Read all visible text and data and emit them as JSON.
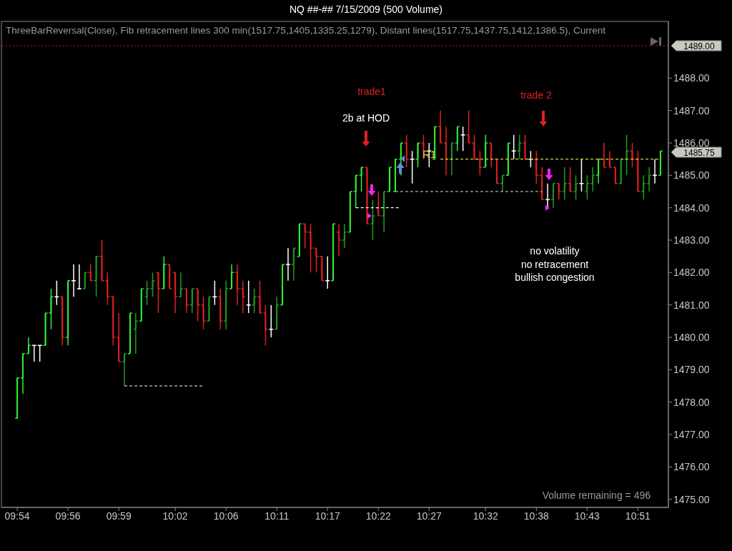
{
  "chart_data": {
    "type": "candlestick",
    "title": "NQ ##-##  7/15/2009 (500 Volume)",
    "categories": [
      "09:54",
      null,
      null,
      null,
      null,
      null,
      null,
      null,
      null,
      "09:56",
      null,
      null,
      null,
      null,
      null,
      null,
      null,
      null,
      "09:59",
      null,
      null,
      null,
      null,
      null,
      null,
      null,
      null,
      null,
      "10:02",
      null,
      null,
      null,
      null,
      null,
      null,
      null,
      null,
      "10:06",
      null,
      null,
      null,
      null,
      null,
      null,
      null,
      null,
      "10:11",
      null,
      null,
      null,
      null,
      null,
      null,
      null,
      null,
      "10:17",
      null,
      null,
      null,
      null,
      null,
      null,
      null,
      null,
      "10:22",
      null,
      null,
      null,
      null,
      null,
      null,
      null,
      null,
      "10:27",
      null,
      null,
      null,
      null,
      null,
      null,
      null,
      null,
      null,
      "10:32",
      null,
      null,
      null,
      null,
      null,
      null,
      null,
      null,
      "10:38",
      null,
      null,
      null,
      null,
      null,
      null,
      null,
      null,
      "10:43",
      null,
      null,
      null,
      null,
      null,
      null,
      null,
      null,
      "10:51",
      null,
      null,
      null,
      null
    ],
    "ohlc": [
      [
        1477.5,
        1478.75,
        1477.5,
        1478.75
      ],
      [
        1478.75,
        1479.5,
        1478.25,
        1479.5
      ],
      [
        1479.5,
        1480,
        1479.5,
        1479.75
      ],
      [
        1479.75,
        1479.75,
        1479.25,
        1479.75
      ],
      [
        1479.75,
        1479.75,
        1479.25,
        1479.75
      ],
      [
        1479.75,
        1480.75,
        1479.75,
        1480.75
      ],
      [
        1480.75,
        1481.5,
        1480.25,
        1481.25
      ],
      [
        1481.25,
        1481.75,
        1481,
        1481.25
      ],
      [
        1481.25,
        1481.25,
        1479.75,
        1480
      ],
      [
        1480,
        1481.75,
        1479.75,
        1481.75
      ],
      [
        1481.75,
        1482.25,
        1481.25,
        1481.75
      ],
      [
        1481.5,
        1482.25,
        1481.5,
        1481.5
      ],
      [
        1481.5,
        1482,
        1481.5,
        1482
      ],
      [
        1482,
        1482.25,
        1481.75,
        1481.75
      ],
      [
        1481.75,
        1482.5,
        1481.25,
        1482.5
      ],
      [
        1482.5,
        1483,
        1481.75,
        1481.75
      ],
      [
        1481.75,
        1482,
        1481,
        1481.25
      ],
      [
        1481.25,
        1481.25,
        1479.75,
        1480
      ],
      [
        1480,
        1480.75,
        1479.25,
        1479.25
      ],
      [
        1479.25,
        1479.5,
        1478.5,
        1479.5
      ],
      [
        1479.5,
        1480.75,
        1479.5,
        1480.75
      ],
      [
        1480.25,
        1480.75,
        1479.5,
        1480.5
      ],
      [
        1480.5,
        1481.5,
        1480.5,
        1481.5
      ],
      [
        1481.25,
        1481.75,
        1481,
        1481.5
      ],
      [
        1481.5,
        1482,
        1481.25,
        1481.75
      ],
      [
        1482,
        1482,
        1480.75,
        1481.5
      ],
      [
        1481.5,
        1482.5,
        1481.5,
        1482.25
      ],
      [
        1482.25,
        1482.25,
        1481.5,
        1481.5
      ],
      [
        1482,
        1482,
        1480.75,
        1481.25
      ],
      [
        1481.25,
        1482,
        1481.25,
        1481.5
      ],
      [
        1481.5,
        1481.5,
        1480.75,
        1481
      ],
      [
        1481,
        1481.5,
        1480.75,
        1481.5
      ],
      [
        1481.5,
        1481.5,
        1480.5,
        1481
      ],
      [
        1481,
        1481.25,
        1480.25,
        1480.5
      ],
      [
        1480.5,
        1481.25,
        1480.5,
        1481.25
      ],
      [
        1481.25,
        1481.75,
        1481,
        1481.25
      ],
      [
        1481.25,
        1481.5,
        1480.25,
        1480.5
      ],
      [
        1480.5,
        1481.75,
        1480.25,
        1481.5
      ],
      [
        1481.5,
        1482.25,
        1481.5,
        1482
      ],
      [
        1482,
        1482.25,
        1481,
        1481.5
      ],
      [
        1481.5,
        1481.75,
        1480.75,
        1481.25
      ],
      [
        1481,
        1481.75,
        1480.75,
        1481
      ],
      [
        1481,
        1481.5,
        1480.75,
        1481.25
      ],
      [
        1481.25,
        1481.75,
        1480.75,
        1480.75
      ],
      [
        1480.75,
        1481,
        1479.75,
        1480.25
      ],
      [
        1480.25,
        1481,
        1480,
        1480.25
      ],
      [
        1480.25,
        1481.25,
        1480.25,
        1481
      ],
      [
        1481,
        1482.25,
        1481,
        1482.25
      ],
      [
        1482.25,
        1482.75,
        1481.75,
        1482.25
      ],
      [
        1482.25,
        1482.75,
        1481.75,
        1482.75
      ],
      [
        1482.5,
        1483.5,
        1482.5,
        1483.5
      ],
      [
        1483.5,
        1483.5,
        1482.75,
        1483.25
      ],
      [
        1483.25,
        1483.5,
        1482,
        1482.75
      ],
      [
        1482.75,
        1482.75,
        1482,
        1482.5
      ],
      [
        1482.5,
        1482.5,
        1481.75,
        1481.75
      ],
      [
        1481.75,
        1482.5,
        1481.5,
        1481.75
      ],
      [
        1481.75,
        1483.5,
        1481.75,
        1483.5
      ],
      [
        1483.25,
        1483.5,
        1482.5,
        1483
      ],
      [
        1483,
        1483.5,
        1482.75,
        1483.25
      ],
      [
        1483.25,
        1484.5,
        1483.25,
        1484.5
      ],
      [
        1484.5,
        1485,
        1484,
        1485
      ],
      [
        1485,
        1485.25,
        1484.5,
        1485.25
      ],
      [
        1485.25,
        1485.25,
        1483.5,
        1483.5
      ],
      [
        1483.5,
        1484.25,
        1483,
        1483.75
      ],
      [
        1484,
        1484.5,
        1483.75,
        1483.75
      ],
      [
        1483.75,
        1484.5,
        1483.25,
        1484.5
      ],
      [
        1484.5,
        1485.25,
        1484.5,
        1485.25
      ],
      [
        1484.5,
        1485.5,
        1484.5,
        1485.5
      ],
      [
        1485.5,
        1486,
        1485,
        1486
      ],
      [
        1486,
        1486.25,
        1485.25,
        1485.5
      ],
      [
        1485.5,
        1485.75,
        1484.75,
        1485.5
      ],
      [
        1485.5,
        1486,
        1485.25,
        1486
      ],
      [
        1486,
        1486.25,
        1485.5,
        1485.75
      ],
      [
        1485.75,
        1486,
        1485.25,
        1485.75
      ],
      [
        1485.5,
        1486.5,
        1485.5,
        1486.5
      ],
      [
        1486.5,
        1487,
        1486,
        1486
      ],
      [
        1486,
        1486.5,
        1485,
        1485.5
      ],
      [
        1485.5,
        1486,
        1485,
        1486
      ],
      [
        1486,
        1486.5,
        1485.75,
        1486.5
      ],
      [
        1486.25,
        1486.5,
        1485.75,
        1486.25
      ],
      [
        1486.25,
        1487,
        1486,
        1486
      ],
      [
        1486,
        1486.25,
        1485.5,
        1485.5
      ],
      [
        1485.5,
        1485.75,
        1485,
        1485.25
      ],
      [
        1485.25,
        1486.25,
        1485.25,
        1486
      ],
      [
        1486,
        1486,
        1485.25,
        1485.5
      ],
      [
        1485.5,
        1485.5,
        1484.75,
        1484.75
      ],
      [
        1484.75,
        1485,
        1484.5,
        1485
      ],
      [
        1485,
        1486,
        1485,
        1486
      ],
      [
        1485.75,
        1486.25,
        1485.5,
        1485.75
      ],
      [
        1485.75,
        1486.25,
        1485.5,
        1486
      ],
      [
        1486,
        1486.25,
        1485.5,
        1485.5
      ],
      [
        1485.5,
        1485.75,
        1485.25,
        1485.5
      ],
      [
        1485.5,
        1485.75,
        1484.75,
        1485
      ],
      [
        1485,
        1485.25,
        1484.25,
        1484.25
      ],
      [
        1484.25,
        1484.75,
        1484,
        1484.25
      ],
      [
        1484.25,
        1484.75,
        1484,
        1484.75
      ],
      [
        1484.75,
        1484.75,
        1484.25,
        1484.5
      ],
      [
        1484.5,
        1485.25,
        1484.25,
        1484.75
      ],
      [
        1484.75,
        1485.25,
        1484.5,
        1484.5
      ],
      [
        1484.5,
        1485,
        1484.25,
        1484.75
      ],
      [
        1484.75,
        1485.5,
        1484.5,
        1484.75
      ],
      [
        1484.5,
        1485,
        1484.25,
        1484.75
      ],
      [
        1484.75,
        1485.25,
        1484.5,
        1485
      ],
      [
        1485,
        1485.5,
        1484.75,
        1485.5
      ],
      [
        1485.5,
        1486,
        1485.25,
        1485.25
      ],
      [
        1485.5,
        1485.75,
        1485.25,
        1485.25
      ],
      [
        1485.25,
        1485.25,
        1484.75,
        1484.75
      ],
      [
        1484.75,
        1485.5,
        1484.75,
        1485.5
      ],
      [
        1485.5,
        1486.25,
        1485,
        1485.75
      ],
      [
        1485.75,
        1486,
        1485.25,
        1485.5
      ],
      [
        1485.5,
        1485.75,
        1484.5,
        1484.5
      ],
      [
        1484.5,
        1485,
        1484.25,
        1484.75
      ],
      [
        1484.75,
        1485.25,
        1484.5,
        1485
      ],
      [
        1485,
        1485.5,
        1484.75,
        1485
      ],
      [
        1485,
        1485.75,
        1485,
        1485.75
      ]
    ],
    "colors": [
      "#33ee33",
      "#33ee33",
      "#33ee33",
      "#ffffff",
      "#ffffff",
      "#33ee33",
      "#33ee33",
      "#ffffff",
      "#e02020",
      "#33ee33",
      "#ffffff",
      "#ffffff",
      "#1f9a1f",
      "#e02020",
      "#1f9a1f",
      "#e02020",
      "#e02020",
      "#e02020",
      "#e02020",
      "#1f9a1f",
      "#33ee33",
      "#1f9a1f",
      "#33ee33",
      "#1f9a1f",
      "#1f9a1f",
      "#e02020",
      "#33ee33",
      "#e02020",
      "#e02020",
      "#1f9a1f",
      "#e02020",
      "#1f9a1f",
      "#e02020",
      "#e02020",
      "#1f9a1f",
      "#ffffff",
      "#e02020",
      "#1f9a1f",
      "#33ee33",
      "#e02020",
      "#e02020",
      "#ffffff",
      "#1f9a1f",
      "#e02020",
      "#e02020",
      "#ffffff",
      "#1f9a1f",
      "#33ee33",
      "#ffffff",
      "#1f9a1f",
      "#33ee33",
      "#e02020",
      "#e02020",
      "#e02020",
      "#e02020",
      "#ffffff",
      "#33ee33",
      "#e02020",
      "#1f9a1f",
      "#33ee33",
      "#33ee33",
      "#33ee33",
      "#e02020",
      "#1f9a1f",
      "#e02020",
      "#1f9a1f",
      "#33ee33",
      "#33ee33",
      "#33ee33",
      "#e02020",
      "#ffffff",
      "#33ee33",
      "#e02020",
      "#ffffff",
      "#33ee33",
      "#e02020",
      "#e02020",
      "#1f9a1f",
      "#33ee33",
      "#ffffff",
      "#e02020",
      "#e02020",
      "#e02020",
      "#33ee33",
      "#e02020",
      "#e02020",
      "#1f9a1f",
      "#33ee33",
      "#ffffff",
      "#1f9a1f",
      "#e02020",
      "#ffffff",
      "#e02020",
      "#e02020",
      "#ffffff",
      "#1f9a1f",
      "#e02020",
      "#1f9a1f",
      "#e02020",
      "#1f9a1f",
      "#ffffff",
      "#1f9a1f",
      "#1f9a1f",
      "#33ee33",
      "#e02020",
      "#e02020",
      "#e02020",
      "#1f9a1f",
      "#1f9a1f",
      "#e02020",
      "#e02020",
      "#1f9a1f",
      "#1f9a1f",
      "#ffffff",
      "#33ee33"
    ],
    "series": [
      {
        "type": "line",
        "color": "#ffffff",
        "line_style": "dashed",
        "values": [
          null,
          null,
          null,
          null,
          null,
          null,
          null,
          null,
          null,
          null,
          null,
          null,
          null,
          null,
          null,
          null,
          null,
          null,
          null,
          1478.5,
          1478.5,
          1478.5,
          1478.5,
          1478.5,
          1478.5,
          1478.5,
          1478.5,
          1478.5,
          1478.5,
          1478.5,
          1478.5,
          1478.5,
          1478.5,
          1478.5,
          null,
          null,
          null,
          null,
          null,
          null,
          null,
          null,
          null,
          null,
          null,
          null,
          null,
          null,
          null,
          null,
          null,
          null,
          null,
          null,
          null,
          null,
          null,
          null,
          null,
          null,
          null,
          null,
          null,
          null,
          null,
          null,
          null,
          null,
          null,
          null,
          null,
          null,
          null,
          null,
          null,
          null,
          null,
          null,
          null,
          null,
          null,
          null,
          null,
          null,
          null,
          null,
          null,
          null,
          null,
          null,
          null,
          null,
          null,
          null,
          null,
          null,
          null,
          null,
          null,
          null,
          null,
          null,
          null,
          null,
          null,
          null,
          null,
          null,
          null,
          null,
          null,
          null,
          null,
          null,
          null
        ]
      },
      {
        "type": "line",
        "color": "#ffffff",
        "line_style": "dashed",
        "values": [
          null,
          null,
          null,
          null,
          null,
          null,
          null,
          null,
          null,
          null,
          null,
          null,
          null,
          null,
          null,
          null,
          null,
          null,
          null,
          null,
          null,
          null,
          null,
          null,
          null,
          null,
          null,
          null,
          null,
          null,
          null,
          null,
          null,
          null,
          null,
          null,
          null,
          null,
          null,
          null,
          null,
          null,
          null,
          null,
          null,
          null,
          null,
          null,
          null,
          null,
          null,
          null,
          null,
          null,
          null,
          null,
          null,
          null,
          null,
          null,
          1484,
          1484,
          1484,
          1484,
          1484,
          1484,
          1484,
          1484,
          1484,
          null,
          null,
          null,
          null,
          null,
          null,
          null,
          null,
          null,
          null,
          null,
          null,
          null,
          null,
          null,
          null,
          null,
          null,
          null,
          null,
          null,
          null,
          null,
          null,
          null,
          null,
          null,
          null,
          null,
          null,
          null,
          null,
          null,
          null,
          null,
          null,
          null,
          null,
          null,
          null,
          null,
          null,
          null,
          null,
          null,
          null
        ]
      },
      {
        "type": "line",
        "color": "#dddddd",
        "line_style": "dashed",
        "values": [
          null,
          null,
          null,
          null,
          null,
          null,
          null,
          null,
          null,
          null,
          null,
          null,
          null,
          null,
          null,
          null,
          null,
          null,
          null,
          null,
          null,
          null,
          null,
          null,
          null,
          null,
          null,
          null,
          null,
          null,
          null,
          null,
          null,
          null,
          null,
          null,
          null,
          null,
          null,
          null,
          null,
          null,
          null,
          null,
          null,
          null,
          null,
          null,
          null,
          null,
          null,
          null,
          null,
          null,
          null,
          null,
          null,
          null,
          null,
          null,
          null,
          null,
          null,
          null,
          null,
          null,
          null,
          1484.5,
          1484.5,
          1484.5,
          1484.5,
          1484.5,
          1484.5,
          1484.5,
          1484.5,
          1484.5,
          1484.5,
          1484.5,
          1484.5,
          1484.5,
          1484.5,
          1484.5,
          1484.5,
          1484.5,
          1484.5,
          1484.5,
          1484.5,
          1484.5,
          1484.5,
          1484.5,
          1484.5,
          1484.5,
          1484.5,
          1484.5,
          null,
          null,
          null,
          null,
          null,
          null,
          null,
          null,
          null,
          null,
          null,
          null,
          null,
          null,
          null,
          null,
          null,
          null,
          null,
          null,
          null
        ]
      },
      {
        "type": "line",
        "name": "R1",
        "color": "#e8d040",
        "line_style": "dashed",
        "values": [
          null,
          null,
          null,
          null,
          null,
          null,
          null,
          null,
          null,
          null,
          null,
          null,
          null,
          null,
          null,
          null,
          null,
          null,
          null,
          null,
          null,
          null,
          null,
          null,
          null,
          null,
          null,
          null,
          null,
          null,
          null,
          null,
          null,
          null,
          null,
          null,
          null,
          null,
          null,
          null,
          null,
          null,
          null,
          null,
          null,
          null,
          null,
          null,
          null,
          null,
          null,
          null,
          null,
          null,
          null,
          null,
          null,
          null,
          null,
          null,
          null,
          null,
          null,
          null,
          null,
          null,
          null,
          null,
          null,
          null,
          null,
          null,
          null,
          null,
          null,
          1485.5,
          1485.5,
          1485.5,
          1485.5,
          1485.5,
          1485.5,
          1485.5,
          1485.5,
          1485.5,
          1485.5,
          1485.5,
          1485.5,
          1485.5,
          1485.5,
          1485.5,
          1485.5,
          1485.5,
          1485.5,
          1485.5,
          1485.5,
          1485.5,
          1485.5,
          1485.5,
          1485.5,
          1485.5,
          1485.5,
          1485.5,
          1485.5,
          1485.5,
          1485.5,
          1485.5,
          1485.5,
          1485.5,
          1485.5,
          1485.5,
          1485.5,
          1485.5,
          1485.5,
          1485.5,
          1485.5
        ]
      }
    ],
    "ylim": [
      1474.75,
      1489.75
    ],
    "yticks": [
      {
        "value": 1475,
        "label": "1475.00"
      },
      {
        "value": 1476,
        "label": "1476.00"
      },
      {
        "value": 1477,
        "label": "1477.00"
      },
      {
        "value": 1478,
        "label": "1478.00"
      },
      {
        "value": 1479,
        "label": "1479.00"
      },
      {
        "value": 1480,
        "label": "1480.00"
      },
      {
        "value": 1481,
        "label": "1481.00"
      },
      {
        "value": 1482,
        "label": "1482.00"
      },
      {
        "value": 1483,
        "label": "1483.00"
      },
      {
        "value": 1484,
        "label": "1484.00"
      },
      {
        "value": 1485,
        "label": "1485.00"
      },
      {
        "value": 1486,
        "label": "1486.00"
      },
      {
        "value": 1487,
        "label": "1487.00"
      },
      {
        "value": 1488,
        "label": "1488.00"
      }
    ],
    "ref_lines": [
      {
        "axis": "y",
        "value": 1489,
        "label": "1489.00",
        "color": "#cc2222",
        "line_style": "dotted"
      }
    ],
    "annotations": [
      "ThreeBarReversal(Close), Fib retracement lines 300 min(1517.75,1405,1335.25,1279), Distant lines(1517.75,1437.75,1412,1386.5), Current",
      "trade1",
      "2b at HOD",
      "trade 2",
      "no volatility",
      "no retracement",
      "bullish congestion",
      "Volume remaining = 496",
      "1485.75"
    ]
  }
}
